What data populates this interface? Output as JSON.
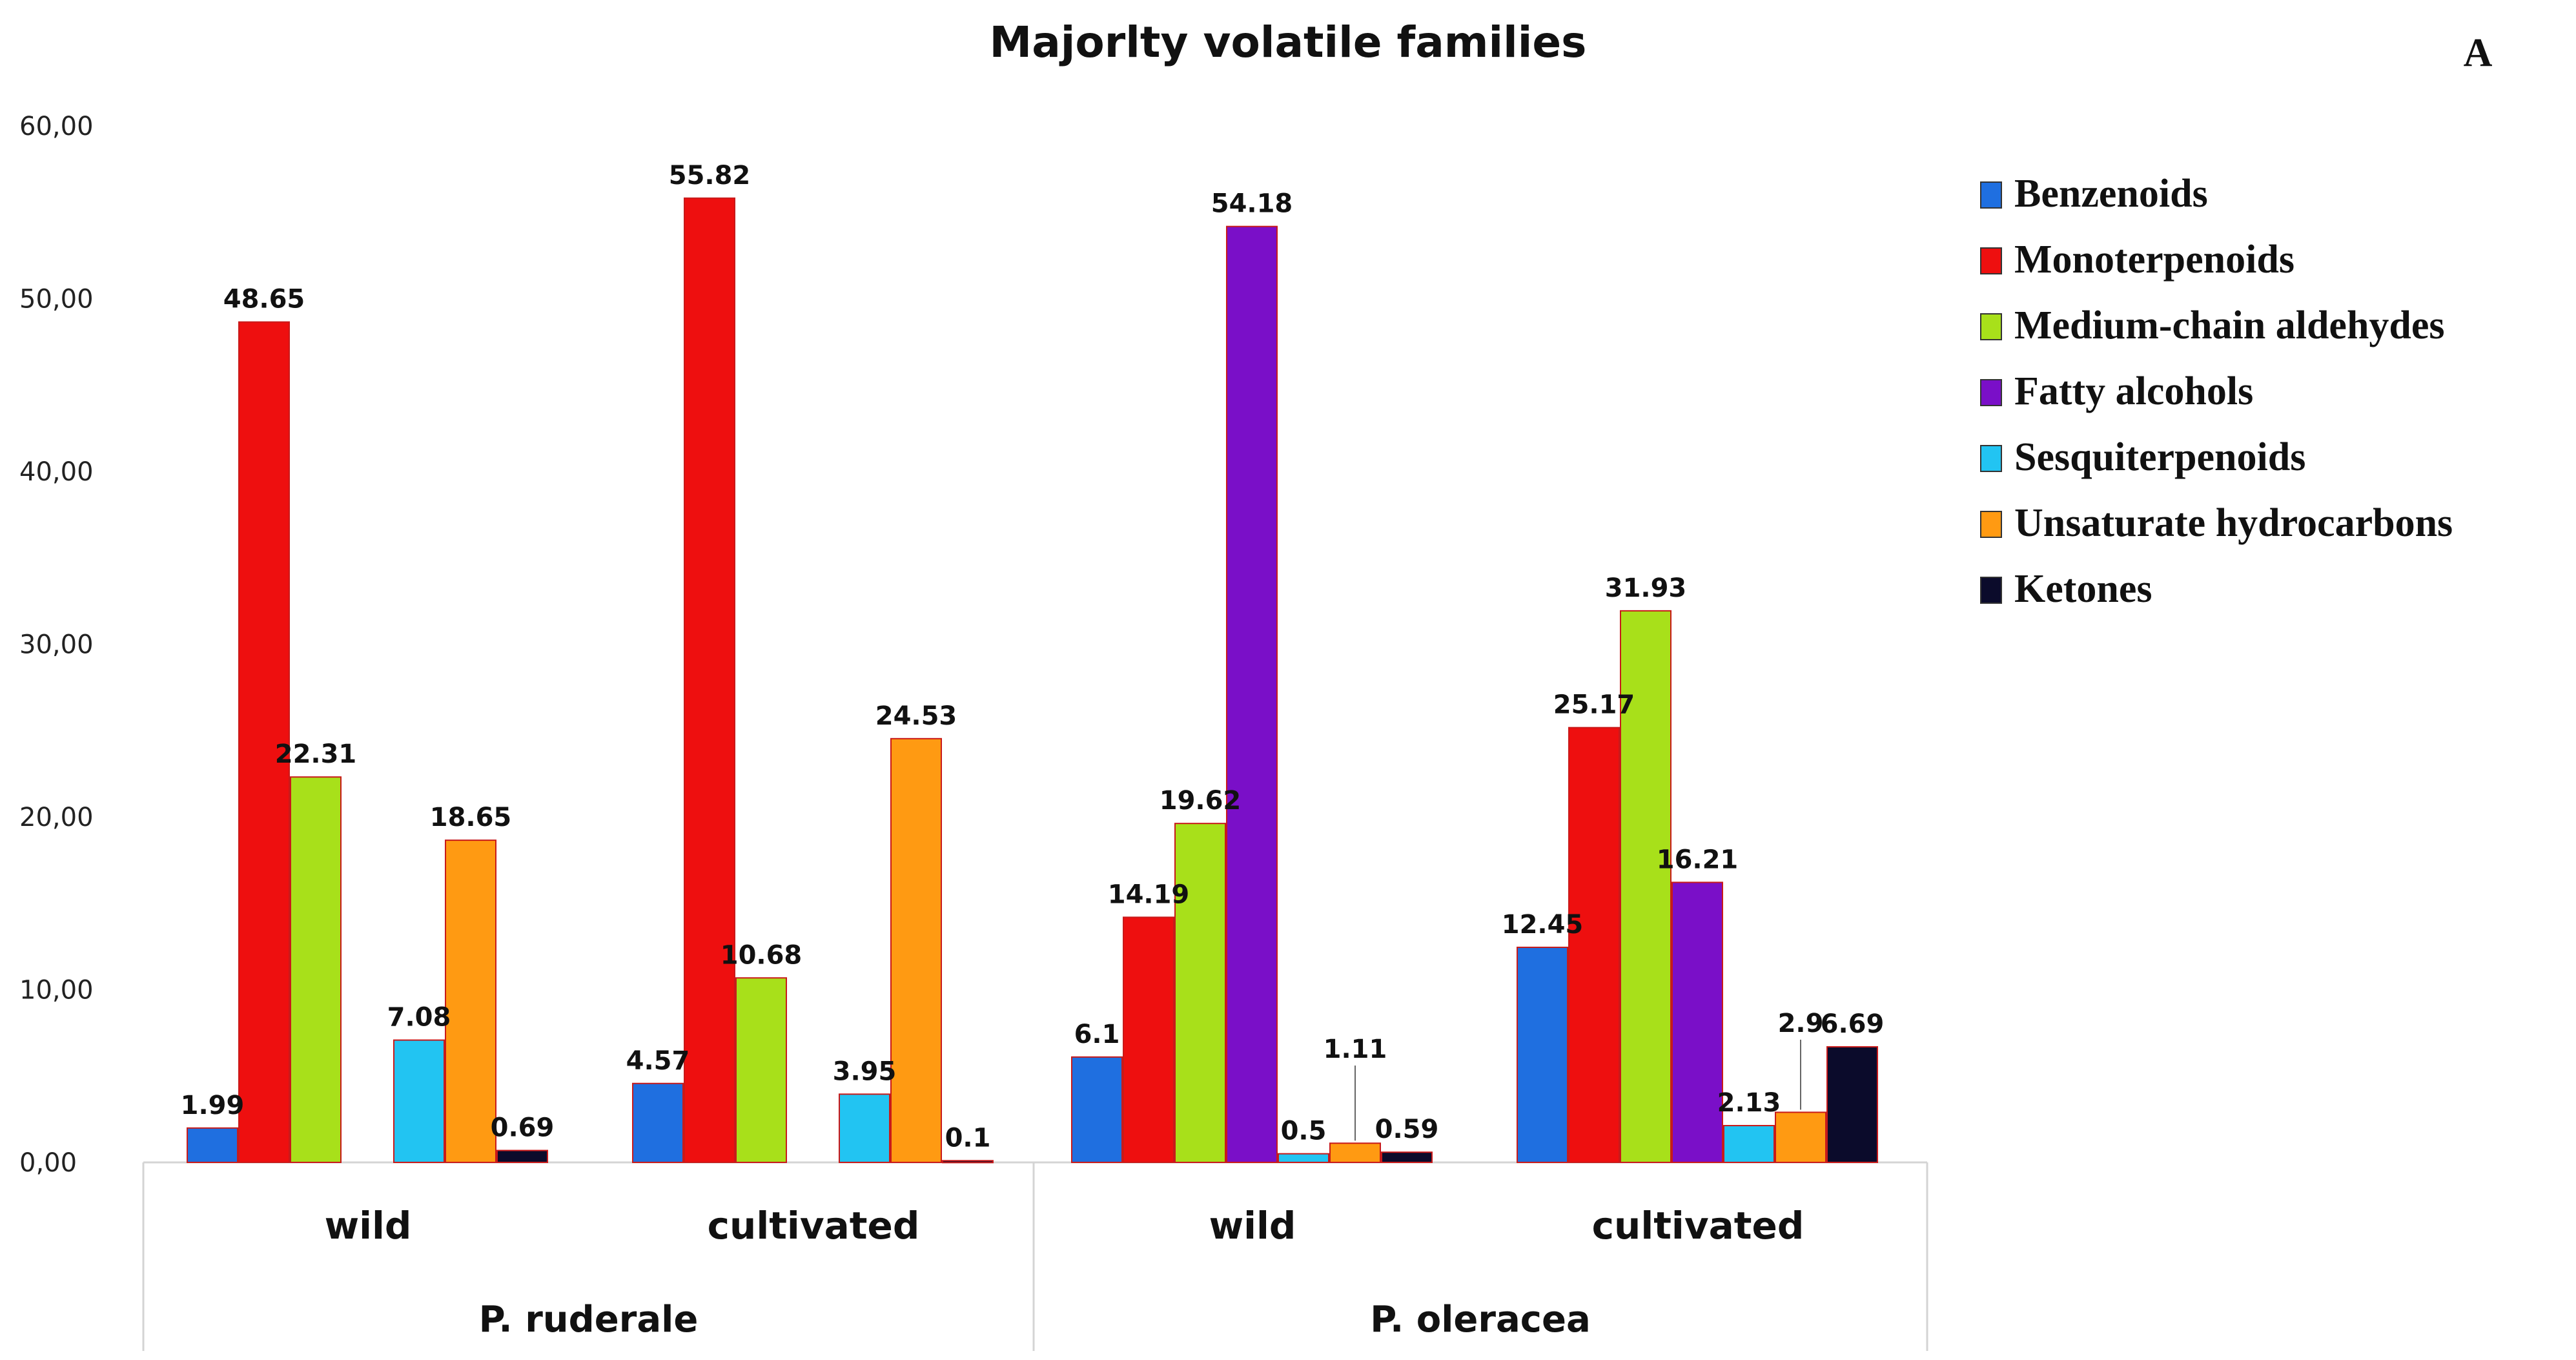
{
  "panel_label": "A",
  "chart_data": {
    "type": "bar",
    "title": "Majorlty volatile families",
    "ylim": [
      0,
      60
    ],
    "yticks": [
      "0,00",
      "10,00",
      "20,00",
      "30,00",
      "40,00",
      "50,00",
      "60,00"
    ],
    "xlabel": "",
    "ylabel": "",
    "legend_position": "right",
    "groups": [
      {
        "name": "P. ruderale",
        "categories": [
          "wild",
          "cultivated"
        ]
      },
      {
        "name": "P. oleracea",
        "categories": [
          "wild",
          "cultivated"
        ]
      }
    ],
    "categories": [
      "wild",
      "cultivated",
      "wild",
      "cultivated"
    ],
    "series": [
      {
        "name": "Benzenoids",
        "color": "#1f6fe0",
        "values": [
          1.99,
          4.57,
          6.1,
          12.45
        ],
        "labels": [
          "1.99",
          "4.57",
          "6.1",
          "12.45"
        ]
      },
      {
        "name": "Monoterpenoids",
        "color": "#ee0f0f",
        "values": [
          48.65,
          55.82,
          14.19,
          25.17
        ],
        "labels": [
          "48.65",
          "55.82",
          "14.19",
          "25.17"
        ]
      },
      {
        "name": "Medium-chain aldehydes",
        "color": "#a8e01a",
        "values": [
          22.31,
          10.68,
          19.62,
          31.93
        ],
        "labels": [
          "22.31",
          "10.68",
          "19.62",
          "31.93"
        ]
      },
      {
        "name": "Fatty alcohols",
        "color": "#7a0fc8",
        "values": [
          0,
          0,
          54.18,
          16.21
        ],
        "labels": [
          null,
          null,
          "54.18",
          "16.21"
        ]
      },
      {
        "name": "Sesquiterpenoids",
        "color": "#22c4f2",
        "values": [
          7.08,
          3.95,
          0.5,
          2.13
        ],
        "labels": [
          "7.08",
          "3.95",
          "0.5",
          "2.13"
        ]
      },
      {
        "name": "Unsaturate hydrocarbons",
        "color": "#ff9a12",
        "values": [
          18.65,
          24.53,
          1.11,
          2.9
        ],
        "labels": [
          "18.65",
          "24.53",
          "1.11",
          "2.9"
        ]
      },
      {
        "name": "Ketones",
        "color": "#0b0b2b",
        "values": [
          0.69,
          0.1,
          0.59,
          6.69
        ],
        "labels": [
          "0.69",
          "0.1",
          "0.59",
          "6.69"
        ]
      }
    ]
  }
}
